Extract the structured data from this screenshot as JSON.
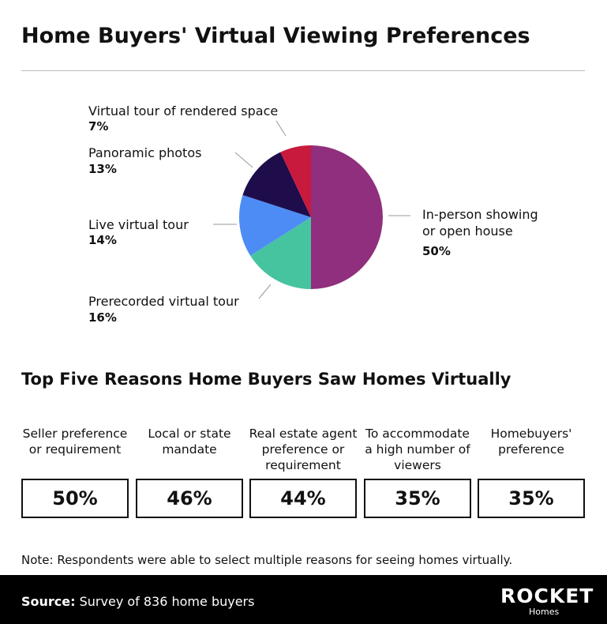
{
  "chart_data": {
    "type": "pie",
    "title": "Home Buyers' Virtual Viewing Preferences",
    "categories": [
      "In-person showing or open house",
      "Prerecorded virtual tour",
      "Live virtual tour",
      "Panoramic photos",
      "Virtual tour of rendered space"
    ],
    "values": [
      50,
      16,
      14,
      13,
      7
    ],
    "value_labels": [
      "50%",
      "16%",
      "14%",
      "13%",
      "7%"
    ],
    "colors": [
      "#8f2f7d",
      "#46c4a0",
      "#4d8cf5",
      "#1e0c4b",
      "#c81a3d"
    ]
  },
  "reasons": {
    "title": "Top Five Reasons Home Buyers Saw Homes Virtually",
    "items": [
      {
        "label": "Seller preference or requirement",
        "value": "50%"
      },
      {
        "label": "Local or state mandate",
        "value": "46%"
      },
      {
        "label": "Real estate agent preference or requirement",
        "value": "44%"
      },
      {
        "label": "To accommodate a high number of viewers",
        "value": "35%"
      },
      {
        "label": "Homebuyers' preference",
        "value": "35%"
      }
    ]
  },
  "note": "Note: Respondents were able to select multiple reasons for seeing homes virtually.",
  "footer": {
    "source_label": "Source:",
    "source": "Survey of 836 home buyers",
    "logo": "ROCKET",
    "logo_sub": "Homes"
  }
}
